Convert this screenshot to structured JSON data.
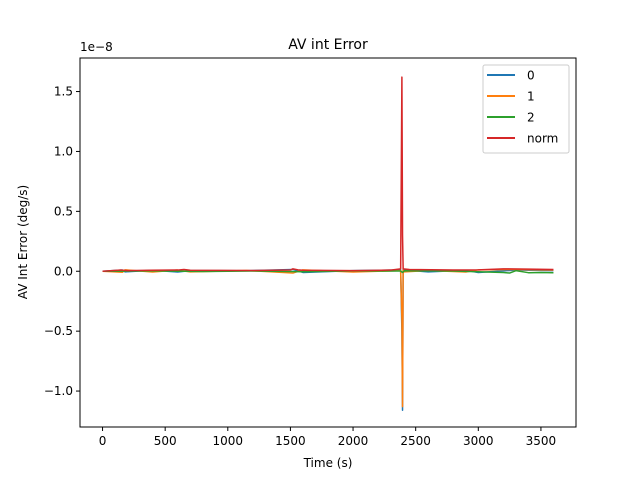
{
  "chart_data": {
    "type": "line",
    "title": "AV int Error",
    "xlabel": "Time (s)",
    "ylabel": "AV Int Error (deg/s)",
    "y_multiplier_label": "1e−8",
    "xlim": [
      -180,
      3780
    ],
    "ylim": [
      -1.3,
      1.78
    ],
    "xticks": [
      0,
      500,
      1000,
      1500,
      2000,
      2500,
      3000,
      3500
    ],
    "yticks": [
      -1.0,
      -0.5,
      0.0,
      0.5,
      1.0,
      1.5
    ],
    "ytick_labels": [
      "−1.0",
      "−0.5",
      "0.0",
      "0.5",
      "1.0",
      "1.5"
    ],
    "grid": false,
    "legend_position": "top-right",
    "series": [
      {
        "name": "0",
        "color": "#1f77b4",
        "x": [
          0,
          160,
          180,
          400,
          600,
          700,
          1150,
          1520,
          1600,
          2000,
          2380,
          2390,
          2395,
          2400,
          2410,
          2600,
          2900,
          3000,
          3300,
          3600
        ],
        "y": [
          0,
          0.01,
          -0.005,
          0.008,
          -0.006,
          0.005,
          0.004,
          0.015,
          -0.01,
          0.005,
          0.01,
          -0.5,
          -1.16,
          0.02,
          0.01,
          -0.005,
          0.008,
          -0.01,
          0.01,
          0.005
        ]
      },
      {
        "name": "1",
        "color": "#ff7f0e",
        "x": [
          0,
          160,
          180,
          400,
          600,
          700,
          1150,
          1520,
          1600,
          2000,
          2380,
          2390,
          2395,
          2400,
          2410,
          2600,
          2900,
          3000,
          3300,
          3600
        ],
        "y": [
          0,
          -0.008,
          0.012,
          -0.006,
          0.01,
          -0.005,
          0.006,
          -0.015,
          0.012,
          -0.006,
          0.005,
          -0.4,
          -1.13,
          0.01,
          -0.005,
          0.006,
          -0.006,
          0.012,
          0.015,
          0.01
        ]
      },
      {
        "name": "2",
        "color": "#2ca02c",
        "x": [
          0,
          400,
          800,
          1200,
          1600,
          2000,
          2380,
          2395,
          2410,
          2800,
          3200,
          3250,
          3300,
          3400,
          3500,
          3600
        ],
        "y": [
          0,
          0.003,
          -0.002,
          0.002,
          -0.004,
          0.003,
          0.002,
          -0.01,
          0.004,
          0.002,
          -0.01,
          -0.015,
          0.005,
          -0.012,
          -0.01,
          -0.012
        ]
      },
      {
        "name": "norm",
        "color": "#d62728",
        "x": [
          0,
          150,
          200,
          380,
          600,
          650,
          700,
          1150,
          1500,
          1520,
          1560,
          1600,
          2000,
          2300,
          2380,
          2385,
          2390,
          2395,
          2400,
          2450,
          2800,
          3000,
          3200,
          3400,
          3600
        ],
        "y": [
          0,
          0.01,
          0.005,
          0.008,
          0.01,
          0.015,
          0.008,
          0.006,
          0.01,
          0.02,
          0.012,
          0.008,
          0.005,
          0.01,
          0.02,
          0.8,
          1.62,
          0.3,
          0.02,
          0.015,
          0.01,
          0.012,
          0.02,
          0.018,
          0.015
        ]
      }
    ]
  }
}
